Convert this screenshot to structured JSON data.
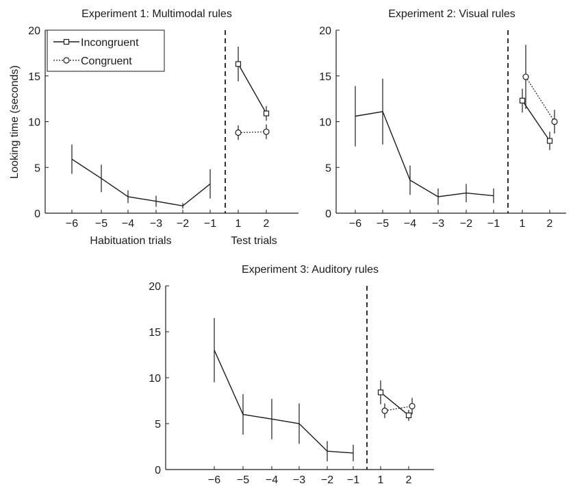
{
  "chart_data": [
    {
      "type": "line",
      "title": "Experiment 1: Multimodal rules",
      "ylabel": "Looking time (seconds)",
      "xlabel_habituation": "Habituation trials",
      "xlabel_test": "Test trials",
      "ylim": [
        0,
        20
      ],
      "yticks": [
        "0",
        "5",
        "10",
        "15",
        "20"
      ],
      "legend": {
        "placement": "top-left",
        "entries": [
          "Incongruent",
          "Congruent"
        ]
      },
      "habituation": {
        "x": [
          -6,
          -5,
          -4,
          -3,
          -2,
          -1
        ],
        "xtick_labels": [
          "−6",
          "−5",
          "−4",
          "−3",
          "−2",
          "−1"
        ],
        "values": [
          5.9,
          3.8,
          1.8,
          1.3,
          0.8,
          3.2
        ],
        "err": [
          1.6,
          1.5,
          0.7,
          0.6,
          0.3,
          1.6
        ]
      },
      "test": {
        "x": [
          1,
          2
        ],
        "xtick_labels": [
          "1",
          "2"
        ],
        "series": [
          {
            "name": "Incongruent",
            "values": [
              16.3,
              10.9
            ],
            "err": [
              1.9,
              0.8
            ]
          },
          {
            "name": "Congruent",
            "values": [
              8.8,
              8.9
            ],
            "err": [
              0.8,
              0.8
            ]
          }
        ]
      }
    },
    {
      "type": "line",
      "title": "Experiment 2: Visual rules",
      "ylim": [
        0,
        20
      ],
      "yticks": [
        "0",
        "5",
        "10",
        "15",
        "20"
      ],
      "habituation": {
        "x": [
          -6,
          -5,
          -4,
          -3,
          -2,
          -1
        ],
        "xtick_labels": [
          "−6",
          "−5",
          "−4",
          "−3",
          "−2",
          "−1"
        ],
        "values": [
          10.6,
          11.1,
          3.6,
          1.8,
          2.2,
          1.9
        ],
        "err": [
          3.3,
          3.6,
          1.6,
          0.9,
          1.0,
          0.8
        ]
      },
      "test": {
        "x": [
          1,
          2
        ],
        "xtick_labels": [
          "1",
          "2"
        ],
        "series": [
          {
            "name": "Incongruent",
            "values": [
              12.3,
              7.9
            ],
            "err": [
              1.3,
              1.0
            ]
          },
          {
            "name": "Congruent",
            "values": [
              14.9,
              10.0
            ],
            "err": [
              3.5,
              1.3
            ]
          }
        ]
      }
    },
    {
      "type": "line",
      "title": "Experiment 3: Auditory rules",
      "ylim": [
        0,
        20
      ],
      "yticks": [
        "0",
        "5",
        "10",
        "15",
        "20"
      ],
      "habituation": {
        "x": [
          -6,
          -5,
          -4,
          -3,
          -2,
          -1
        ],
        "xtick_labels": [
          "−6",
          "−5",
          "−4",
          "−3",
          "−2",
          "−1"
        ],
        "values": [
          13.0,
          6.0,
          5.5,
          5.0,
          2.0,
          1.8
        ],
        "err": [
          3.5,
          2.2,
          2.2,
          2.2,
          1.1,
          0.9
        ]
      },
      "test": {
        "x": [
          1,
          2
        ],
        "xtick_labels": [
          "1",
          "2"
        ],
        "series": [
          {
            "name": "Incongruent",
            "values": [
              8.4,
              5.9
            ],
            "err": [
              1.3,
              0.6
            ]
          },
          {
            "name": "Congruent",
            "values": [
              6.4,
              6.9
            ],
            "err": [
              0.8,
              0.9
            ]
          }
        ]
      }
    }
  ]
}
